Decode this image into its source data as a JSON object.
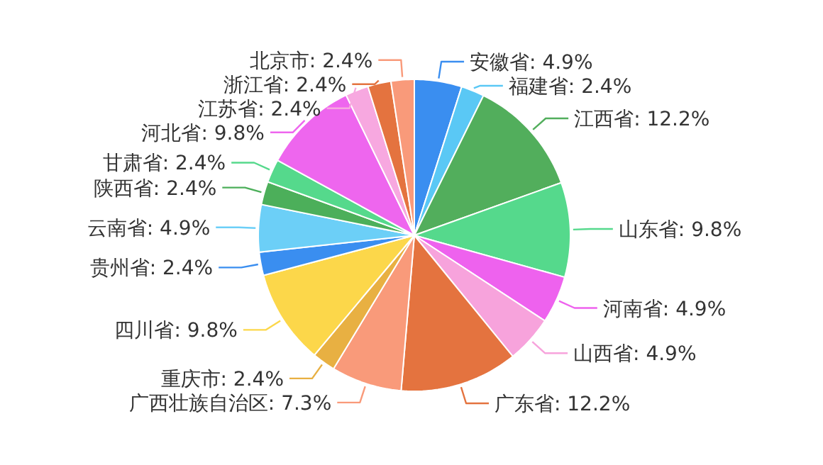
{
  "chart_data": {
    "type": "pie",
    "categories": [
      "安徽省",
      "福建省",
      "江西省",
      "山东省",
      "河南省",
      "山西省",
      "广东省",
      "广西壮族自治区",
      "重庆市",
      "四川省",
      "贵州省",
      "云南省",
      "陕西省",
      "甘肃省",
      "河北省",
      "江苏省",
      "浙江省",
      "北京市"
    ],
    "values": [
      4.9,
      2.4,
      12.2,
      9.8,
      4.9,
      4.9,
      12.2,
      7.3,
      2.4,
      9.8,
      2.4,
      4.9,
      2.4,
      2.4,
      9.8,
      2.4,
      2.4,
      2.4
    ],
    "value_labels": [
      "4.9%",
      "2.4%",
      "12.2%",
      "9.8%",
      "4.9%",
      "4.9%",
      "12.2%",
      "7.3%",
      "2.4%",
      "9.8%",
      "2.4%",
      "4.9%",
      "2.4%",
      "2.4%",
      "9.8%",
      "2.4%",
      "2.4%",
      "2.4%"
    ],
    "colors": [
      "#3a8ef0",
      "#5ac8f5",
      "#52ae5c",
      "#55d98c",
      "#ee62ee",
      "#f7a3dc",
      "#e4733f",
      "#f99a7a",
      "#e8b042",
      "#fcd74a",
      "#3a8ef0",
      "#6ccff7",
      "#4caf5a",
      "#55d98c",
      "#ee66ee",
      "#f7a8e0",
      "#e4733f",
      "#f99a7a"
    ]
  }
}
